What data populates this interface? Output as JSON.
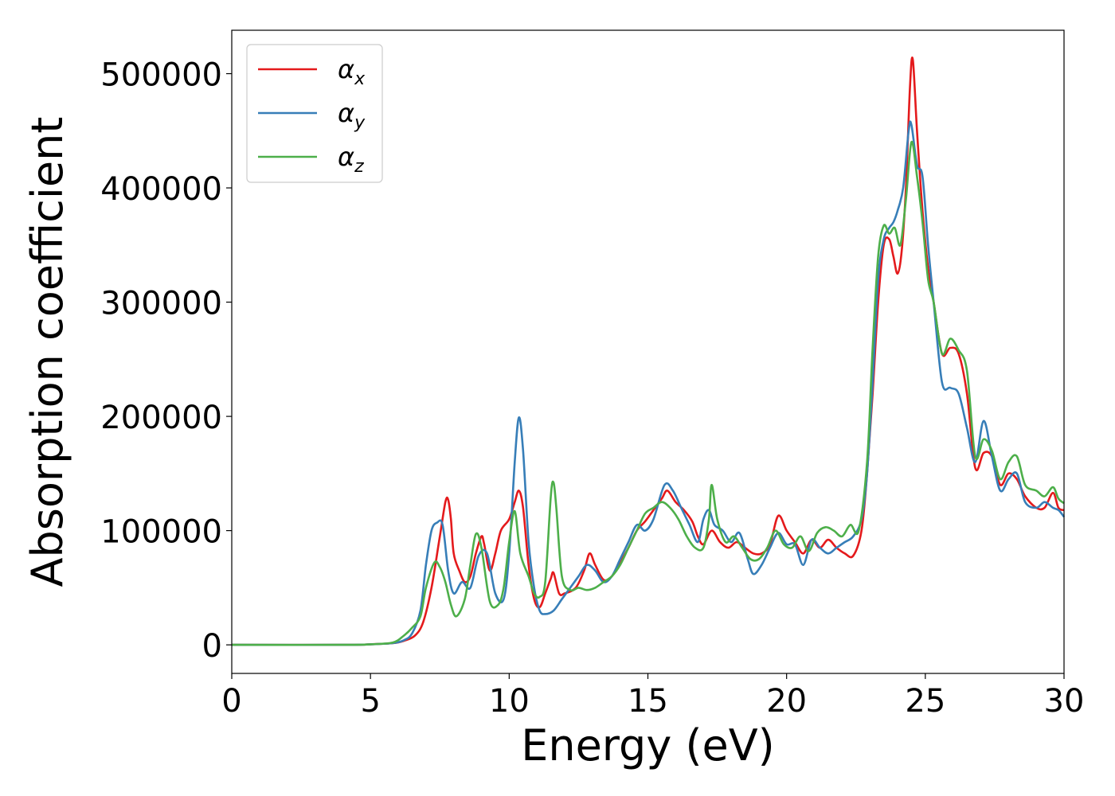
{
  "chart_data": {
    "type": "line",
    "title": "",
    "xlabel": "Energy (eV)",
    "ylabel": "Absorption coefficient",
    "xlim": [
      0,
      30
    ],
    "ylim": [
      -25000,
      538000
    ],
    "xticks": [
      0,
      5,
      10,
      15,
      20,
      25,
      30
    ],
    "yticks": [
      0,
      100000,
      200000,
      300000,
      400000,
      500000
    ],
    "grid": false,
    "legend_position": "top-left",
    "series": [
      {
        "name": "α",
        "sub": "x",
        "color": "#e41a1c",
        "points": [
          [
            0,
            0
          ],
          [
            4,
            0
          ],
          [
            5,
            500
          ],
          [
            5.8,
            1500
          ],
          [
            6.2,
            3500
          ],
          [
            6.6,
            8000
          ],
          [
            6.9,
            20000
          ],
          [
            7.2,
            50000
          ],
          [
            7.5,
            95000
          ],
          [
            7.7,
            125000
          ],
          [
            7.8,
            127000
          ],
          [
            7.9,
            110000
          ],
          [
            8.0,
            80000
          ],
          [
            8.2,
            65000
          ],
          [
            8.4,
            55000
          ],
          [
            8.6,
            60000
          ],
          [
            8.8,
            80000
          ],
          [
            9.0,
            95000
          ],
          [
            9.1,
            88000
          ],
          [
            9.3,
            65000
          ],
          [
            9.5,
            80000
          ],
          [
            9.7,
            100000
          ],
          [
            10.0,
            110000
          ],
          [
            10.2,
            125000
          ],
          [
            10.35,
            135000
          ],
          [
            10.5,
            120000
          ],
          [
            10.7,
            70000
          ],
          [
            10.9,
            40000
          ],
          [
            11.1,
            33000
          ],
          [
            11.3,
            45000
          ],
          [
            11.5,
            58000
          ],
          [
            11.6,
            63000
          ],
          [
            11.8,
            45000
          ],
          [
            12.0,
            45000
          ],
          [
            12.4,
            50000
          ],
          [
            12.7,
            65000
          ],
          [
            12.9,
            80000
          ],
          [
            13.1,
            70000
          ],
          [
            13.4,
            57000
          ],
          [
            13.7,
            60000
          ],
          [
            14.0,
            72000
          ],
          [
            14.3,
            85000
          ],
          [
            14.6,
            100000
          ],
          [
            14.9,
            108000
          ],
          [
            15.2,
            118000
          ],
          [
            15.5,
            128000
          ],
          [
            15.7,
            135000
          ],
          [
            16.0,
            125000
          ],
          [
            16.3,
            118000
          ],
          [
            16.6,
            108000
          ],
          [
            16.8,
            95000
          ],
          [
            17.0,
            88000
          ],
          [
            17.3,
            100000
          ],
          [
            17.6,
            90000
          ],
          [
            17.9,
            85000
          ],
          [
            18.2,
            90000
          ],
          [
            18.5,
            85000
          ],
          [
            18.8,
            80000
          ],
          [
            19.1,
            80000
          ],
          [
            19.4,
            88000
          ],
          [
            19.7,
            113000
          ],
          [
            20.0,
            100000
          ],
          [
            20.3,
            90000
          ],
          [
            20.6,
            80000
          ],
          [
            20.9,
            92000
          ],
          [
            21.2,
            85000
          ],
          [
            21.5,
            92000
          ],
          [
            21.8,
            85000
          ],
          [
            22.1,
            80000
          ],
          [
            22.4,
            78000
          ],
          [
            22.7,
            100000
          ],
          [
            22.9,
            150000
          ],
          [
            23.1,
            220000
          ],
          [
            23.3,
            300000
          ],
          [
            23.5,
            350000
          ],
          [
            23.7,
            355000
          ],
          [
            23.85,
            340000
          ],
          [
            24.0,
            325000
          ],
          [
            24.15,
            345000
          ],
          [
            24.3,
            400000
          ],
          [
            24.45,
            490000
          ],
          [
            24.55,
            512000
          ],
          [
            24.7,
            450000
          ],
          [
            24.9,
            380000
          ],
          [
            25.1,
            330000
          ],
          [
            25.3,
            300000
          ],
          [
            25.6,
            255000
          ],
          [
            25.9,
            260000
          ],
          [
            26.2,
            255000
          ],
          [
            26.5,
            220000
          ],
          [
            26.8,
            155000
          ],
          [
            27.1,
            168000
          ],
          [
            27.4,
            165000
          ],
          [
            27.7,
            140000
          ],
          [
            28.0,
            150000
          ],
          [
            28.3,
            145000
          ],
          [
            28.6,
            130000
          ],
          [
            29.0,
            120000
          ],
          [
            29.3,
            120000
          ],
          [
            29.6,
            133000
          ],
          [
            29.8,
            120000
          ],
          [
            30,
            118000
          ]
        ]
      },
      {
        "name": "α",
        "sub": "y",
        "color": "#377eb8",
        "points": [
          [
            0,
            0
          ],
          [
            4,
            0
          ],
          [
            5,
            500
          ],
          [
            5.8,
            1500
          ],
          [
            6.2,
            4000
          ],
          [
            6.5,
            10000
          ],
          [
            6.8,
            30000
          ],
          [
            7.0,
            70000
          ],
          [
            7.2,
            100000
          ],
          [
            7.4,
            107000
          ],
          [
            7.6,
            105000
          ],
          [
            7.8,
            65000
          ],
          [
            8.0,
            45000
          ],
          [
            8.3,
            55000
          ],
          [
            8.6,
            50000
          ],
          [
            8.9,
            78000
          ],
          [
            9.2,
            80000
          ],
          [
            9.5,
            45000
          ],
          [
            9.8,
            40000
          ],
          [
            10.0,
            80000
          ],
          [
            10.2,
            160000
          ],
          [
            10.35,
            199000
          ],
          [
            10.5,
            170000
          ],
          [
            10.7,
            90000
          ],
          [
            10.9,
            50000
          ],
          [
            11.1,
            30000
          ],
          [
            11.3,
            27000
          ],
          [
            11.6,
            30000
          ],
          [
            11.9,
            40000
          ],
          [
            12.2,
            50000
          ],
          [
            12.5,
            60000
          ],
          [
            12.8,
            70000
          ],
          [
            13.1,
            65000
          ],
          [
            13.4,
            55000
          ],
          [
            13.7,
            60000
          ],
          [
            14.0,
            75000
          ],
          [
            14.3,
            90000
          ],
          [
            14.6,
            105000
          ],
          [
            14.9,
            100000
          ],
          [
            15.2,
            110000
          ],
          [
            15.6,
            140000
          ],
          [
            15.9,
            135000
          ],
          [
            16.2,
            120000
          ],
          [
            16.5,
            105000
          ],
          [
            16.8,
            90000
          ],
          [
            17.0,
            110000
          ],
          [
            17.2,
            118000
          ],
          [
            17.4,
            105000
          ],
          [
            17.7,
            100000
          ],
          [
            18.0,
            90000
          ],
          [
            18.3,
            98000
          ],
          [
            18.6,
            75000
          ],
          [
            18.8,
            62000
          ],
          [
            19.1,
            70000
          ],
          [
            19.4,
            85000
          ],
          [
            19.7,
            98000
          ],
          [
            20.0,
            88000
          ],
          [
            20.3,
            88000
          ],
          [
            20.6,
            70000
          ],
          [
            20.9,
            92000
          ],
          [
            21.2,
            85000
          ],
          [
            21.5,
            80000
          ],
          [
            21.8,
            85000
          ],
          [
            22.1,
            90000
          ],
          [
            22.4,
            95000
          ],
          [
            22.7,
            110000
          ],
          [
            22.9,
            150000
          ],
          [
            23.1,
            230000
          ],
          [
            23.3,
            320000
          ],
          [
            23.5,
            355000
          ],
          [
            23.7,
            365000
          ],
          [
            23.85,
            370000
          ],
          [
            24.0,
            380000
          ],
          [
            24.2,
            400000
          ],
          [
            24.4,
            450000
          ],
          [
            24.5,
            455000
          ],
          [
            24.7,
            420000
          ],
          [
            24.9,
            410000
          ],
          [
            25.1,
            350000
          ],
          [
            25.3,
            300000
          ],
          [
            25.6,
            230000
          ],
          [
            25.9,
            225000
          ],
          [
            26.2,
            220000
          ],
          [
            26.5,
            190000
          ],
          [
            26.8,
            160000
          ],
          [
            27.1,
            196000
          ],
          [
            27.4,
            165000
          ],
          [
            27.7,
            135000
          ],
          [
            28.0,
            145000
          ],
          [
            28.3,
            150000
          ],
          [
            28.6,
            125000
          ],
          [
            29.0,
            120000
          ],
          [
            29.3,
            125000
          ],
          [
            29.6,
            120000
          ],
          [
            29.8,
            118000
          ],
          [
            30,
            112000
          ]
        ]
      },
      {
        "name": "α",
        "sub": "z",
        "color": "#4daf4a",
        "points": [
          [
            0,
            0
          ],
          [
            4,
            0
          ],
          [
            5,
            500
          ],
          [
            5.8,
            2000
          ],
          [
            6.2,
            8000
          ],
          [
            6.5,
            15000
          ],
          [
            6.8,
            25000
          ],
          [
            7.0,
            50000
          ],
          [
            7.3,
            72000
          ],
          [
            7.5,
            68000
          ],
          [
            7.7,
            55000
          ],
          [
            7.9,
            35000
          ],
          [
            8.1,
            25000
          ],
          [
            8.4,
            40000
          ],
          [
            8.6,
            70000
          ],
          [
            8.8,
            97000
          ],
          [
            9.0,
            85000
          ],
          [
            9.3,
            38000
          ],
          [
            9.6,
            35000
          ],
          [
            9.8,
            50000
          ],
          [
            10.0,
            90000
          ],
          [
            10.2,
            117000
          ],
          [
            10.4,
            80000
          ],
          [
            10.7,
            60000
          ],
          [
            10.9,
            45000
          ],
          [
            11.1,
            42000
          ],
          [
            11.3,
            55000
          ],
          [
            11.5,
            130000
          ],
          [
            11.6,
            142000
          ],
          [
            11.7,
            120000
          ],
          [
            11.9,
            60000
          ],
          [
            12.2,
            48000
          ],
          [
            12.5,
            50000
          ],
          [
            12.8,
            48000
          ],
          [
            13.1,
            50000
          ],
          [
            13.4,
            55000
          ],
          [
            13.7,
            60000
          ],
          [
            14.0,
            70000
          ],
          [
            14.3,
            85000
          ],
          [
            14.6,
            100000
          ],
          [
            14.9,
            115000
          ],
          [
            15.2,
            120000
          ],
          [
            15.5,
            125000
          ],
          [
            15.8,
            120000
          ],
          [
            16.1,
            110000
          ],
          [
            16.4,
            95000
          ],
          [
            16.7,
            85000
          ],
          [
            17.0,
            85000
          ],
          [
            17.2,
            110000
          ],
          [
            17.3,
            140000
          ],
          [
            17.5,
            110000
          ],
          [
            17.8,
            90000
          ],
          [
            18.1,
            95000
          ],
          [
            18.4,
            85000
          ],
          [
            18.7,
            75000
          ],
          [
            19.0,
            75000
          ],
          [
            19.3,
            85000
          ],
          [
            19.6,
            100000
          ],
          [
            19.9,
            88000
          ],
          [
            20.2,
            85000
          ],
          [
            20.5,
            95000
          ],
          [
            20.8,
            82000
          ],
          [
            21.1,
            98000
          ],
          [
            21.4,
            103000
          ],
          [
            21.7,
            100000
          ],
          [
            22.0,
            95000
          ],
          [
            22.3,
            105000
          ],
          [
            22.6,
            100000
          ],
          [
            22.9,
            160000
          ],
          [
            23.1,
            260000
          ],
          [
            23.3,
            340000
          ],
          [
            23.5,
            367000
          ],
          [
            23.7,
            360000
          ],
          [
            23.9,
            365000
          ],
          [
            24.1,
            350000
          ],
          [
            24.3,
            390000
          ],
          [
            24.5,
            440000
          ],
          [
            24.7,
            410000
          ],
          [
            24.9,
            370000
          ],
          [
            25.1,
            320000
          ],
          [
            25.3,
            300000
          ],
          [
            25.6,
            255000
          ],
          [
            25.9,
            268000
          ],
          [
            26.2,
            258000
          ],
          [
            26.5,
            240000
          ],
          [
            26.8,
            165000
          ],
          [
            27.1,
            180000
          ],
          [
            27.4,
            170000
          ],
          [
            27.7,
            145000
          ],
          [
            28.0,
            160000
          ],
          [
            28.3,
            165000
          ],
          [
            28.6,
            140000
          ],
          [
            29.0,
            135000
          ],
          [
            29.3,
            130000
          ],
          [
            29.6,
            138000
          ],
          [
            29.8,
            128000
          ],
          [
            30,
            124000
          ]
        ]
      }
    ]
  }
}
